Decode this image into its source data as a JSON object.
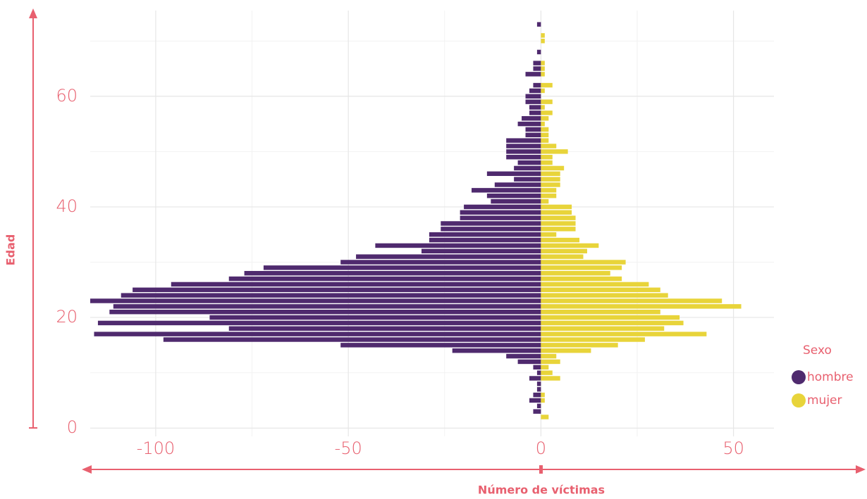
{
  "chart_data": {
    "type": "bar",
    "orientation": "horizontal",
    "x_label": "Número de víctimas",
    "y_label": "Edad",
    "legend_title": "Sexo",
    "legend_position": "right",
    "categories": [
      0,
      1,
      2,
      3,
      4,
      5,
      6,
      7,
      8,
      9,
      10,
      11,
      12,
      13,
      14,
      15,
      16,
      17,
      18,
      19,
      20,
      21,
      22,
      23,
      24,
      25,
      26,
      27,
      28,
      29,
      30,
      31,
      32,
      33,
      34,
      35,
      36,
      37,
      38,
      39,
      40,
      41,
      42,
      43,
      44,
      45,
      46,
      47,
      48,
      49,
      50,
      51,
      52,
      53,
      54,
      55,
      56,
      57,
      58,
      59,
      60,
      61,
      62,
      63,
      64,
      65,
      66,
      67,
      68,
      69,
      70,
      71,
      72,
      73
    ],
    "series": [
      {
        "name": "hombre",
        "color": "#4f2a6e",
        "values": [
          0,
          0,
          0,
          -2,
          -1,
          -3,
          -2,
          -1,
          -1,
          -3,
          -1,
          -2,
          -6,
          -9,
          -23,
          -52,
          -98,
          -116,
          -81,
          -115,
          -86,
          -112,
          -111,
          -117,
          -109,
          -106,
          -96,
          -81,
          -77,
          -72,
          -52,
          -48,
          -31,
          -43,
          -29,
          -29,
          -26,
          -26,
          -21,
          -21,
          -20,
          -13,
          -14,
          -18,
          -12,
          -7,
          -14,
          -7,
          -6,
          -9,
          -9,
          -9,
          -9,
          -4,
          -4,
          -6,
          -5,
          -3,
          -3,
          -4,
          -4,
          -3,
          -2,
          0,
          -4,
          -2,
          -2,
          0,
          -1,
          0,
          0,
          0,
          0,
          -1
        ]
      },
      {
        "name": "mujer",
        "color": "#e8d43a",
        "values": [
          0,
          0,
          2,
          0,
          0,
          1,
          1,
          0,
          0,
          5,
          3,
          2,
          5,
          4,
          13,
          20,
          27,
          43,
          32,
          37,
          36,
          31,
          52,
          47,
          33,
          31,
          28,
          21,
          18,
          21,
          22,
          11,
          12,
          15,
          10,
          4,
          9,
          9,
          9,
          8,
          8,
          2,
          4,
          4,
          5,
          5,
          5,
          6,
          3,
          3,
          7,
          4,
          2,
          2,
          2,
          1,
          2,
          3,
          1,
          3,
          0,
          1,
          3,
          0,
          1,
          1,
          1,
          0,
          0,
          0,
          1,
          1,
          0,
          0
        ]
      }
    ],
    "xlim": [
      -117,
      60.5
    ],
    "xticks": [
      -100,
      -50,
      0,
      50
    ],
    "minor_xticks": [
      -75,
      -25,
      25
    ],
    "ylim": [
      -1.5,
      75.5
    ],
    "yticks": [
      0,
      20,
      40,
      60
    ],
    "minor_yticks": [
      10,
      30,
      50,
      70
    ],
    "grid": true
  }
}
